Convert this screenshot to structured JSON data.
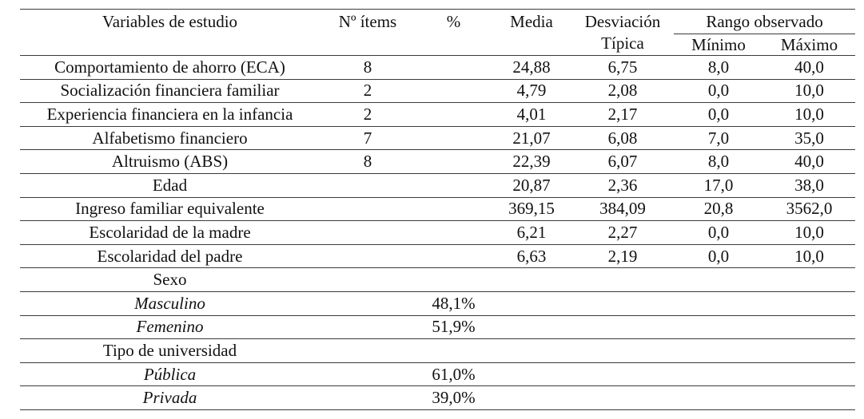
{
  "table": {
    "headers": {
      "variables": "Variables de estudio",
      "items": "Nº ítems",
      "percent": "%",
      "media": "Media",
      "sd": "Desviación Típica",
      "range_group": "Rango observado",
      "min": "Mínimo",
      "max": "Máximo"
    },
    "rows": [
      {
        "variable": "Comportamiento de ahorro (ECA)",
        "items": "8",
        "pct": "",
        "media": "24,88",
        "sd": "6,75",
        "min": "8,0",
        "max": "40,0",
        "italic": false
      },
      {
        "variable": "Socialización financiera familiar",
        "items": "2",
        "pct": "",
        "media": "4,79",
        "sd": "2,08",
        "min": "0,0",
        "max": "10,0",
        "italic": false
      },
      {
        "variable": "Experiencia financiera en la infancia",
        "items": "2",
        "pct": "",
        "media": "4,01",
        "sd": "2,17",
        "min": "0,0",
        "max": "10,0",
        "italic": false
      },
      {
        "variable": "Alfabetismo financiero",
        "items": "7",
        "pct": "",
        "media": "21,07",
        "sd": "6,08",
        "min": "7,0",
        "max": "35,0",
        "italic": false
      },
      {
        "variable": "Altruismo (ABS)",
        "items": "8",
        "pct": "",
        "media": "22,39",
        "sd": "6,07",
        "min": "8,0",
        "max": "40,0",
        "italic": false
      },
      {
        "variable": "Edad",
        "items": "",
        "pct": "",
        "media": "20,87",
        "sd": "2,36",
        "min": "17,0",
        "max": "38,0",
        "italic": false
      },
      {
        "variable": "Ingreso familiar equivalente",
        "items": "",
        "pct": "",
        "media": "369,15",
        "sd": "384,09",
        "min": "20,8",
        "max": "3562,0",
        "italic": false
      },
      {
        "variable": "Escolaridad de la madre",
        "items": "",
        "pct": "",
        "media": "6,21",
        "sd": "2,27",
        "min": "0,0",
        "max": "10,0",
        "italic": false
      },
      {
        "variable": "Escolaridad del padre",
        "items": "",
        "pct": "",
        "media": "6,63",
        "sd": "2,19",
        "min": "0,0",
        "max": "10,0",
        "italic": false
      },
      {
        "variable": "Sexo",
        "items": "",
        "pct": "",
        "media": "",
        "sd": "",
        "min": "",
        "max": "",
        "italic": false
      },
      {
        "variable": "Masculino",
        "items": "",
        "pct": "48,1%",
        "media": "",
        "sd": "",
        "min": "",
        "max": "",
        "italic": true
      },
      {
        "variable": "Femenino",
        "items": "",
        "pct": "51,9%",
        "media": "",
        "sd": "",
        "min": "",
        "max": "",
        "italic": true
      },
      {
        "variable": "Tipo de universidad",
        "items": "",
        "pct": "",
        "media": "",
        "sd": "",
        "min": "",
        "max": "",
        "italic": false
      },
      {
        "variable": "Pública",
        "items": "",
        "pct": "61,0%",
        "media": "",
        "sd": "",
        "min": "",
        "max": "",
        "italic": true
      },
      {
        "variable": "Privada",
        "items": "",
        "pct": "39,0%",
        "media": "",
        "sd": "",
        "min": "",
        "max": "",
        "italic": true
      }
    ]
  }
}
